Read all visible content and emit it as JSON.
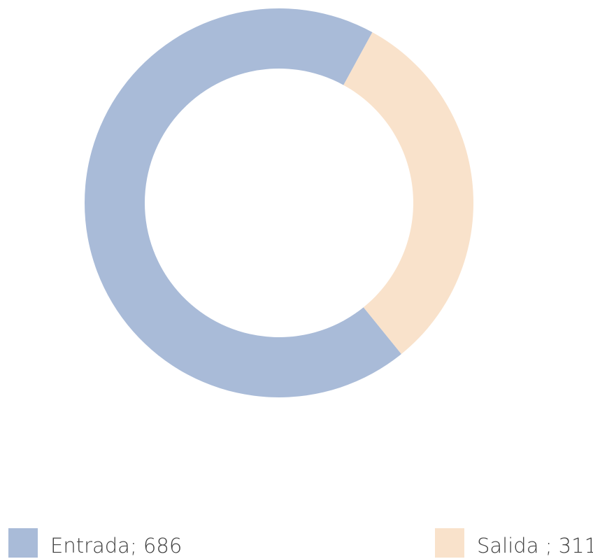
{
  "chart_data": {
    "type": "donut",
    "categories": [
      "Entrada; 686",
      "Salida ; 311"
    ],
    "values": [
      686,
      311
    ],
    "colors": [
      "#a9bbd8",
      "#f9e2cb"
    ]
  }
}
